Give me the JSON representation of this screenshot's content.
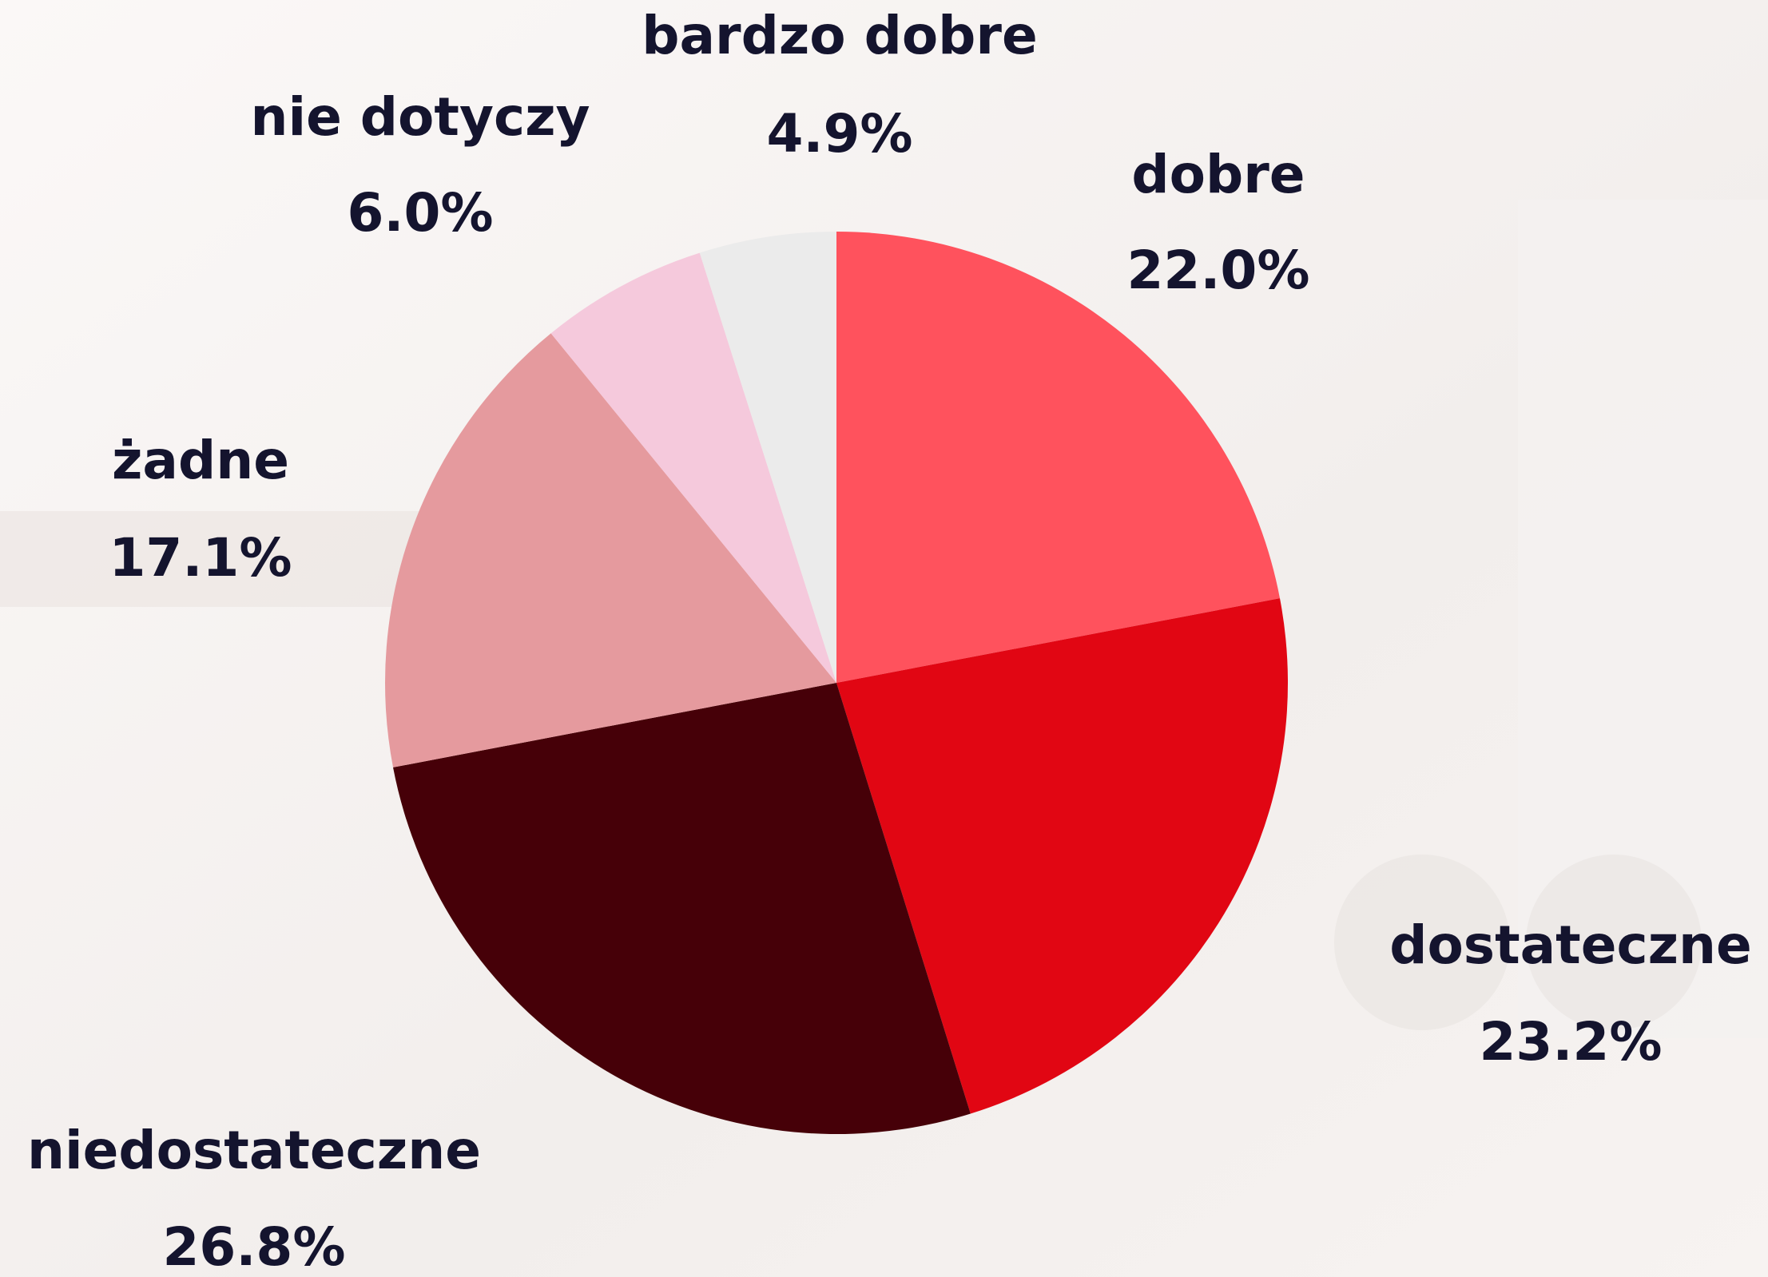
{
  "chart_data": {
    "type": "pie",
    "categories": [
      "dobre",
      "dostateczne",
      "niedostateczne",
      "żadne",
      "nie dotyczy",
      "bardzo dobre"
    ],
    "values": [
      22.0,
      23.2,
      26.8,
      17.1,
      6.0,
      4.9
    ],
    "value_labels": [
      "22.0%",
      "23.2%",
      "26.8%",
      "17.1%",
      "6.0%",
      "4.9%"
    ],
    "colors": [
      "#ff525d",
      "#e10613",
      "#460008",
      "#e59a9e",
      "#f5c9dc",
      "#ebebeb"
    ]
  }
}
